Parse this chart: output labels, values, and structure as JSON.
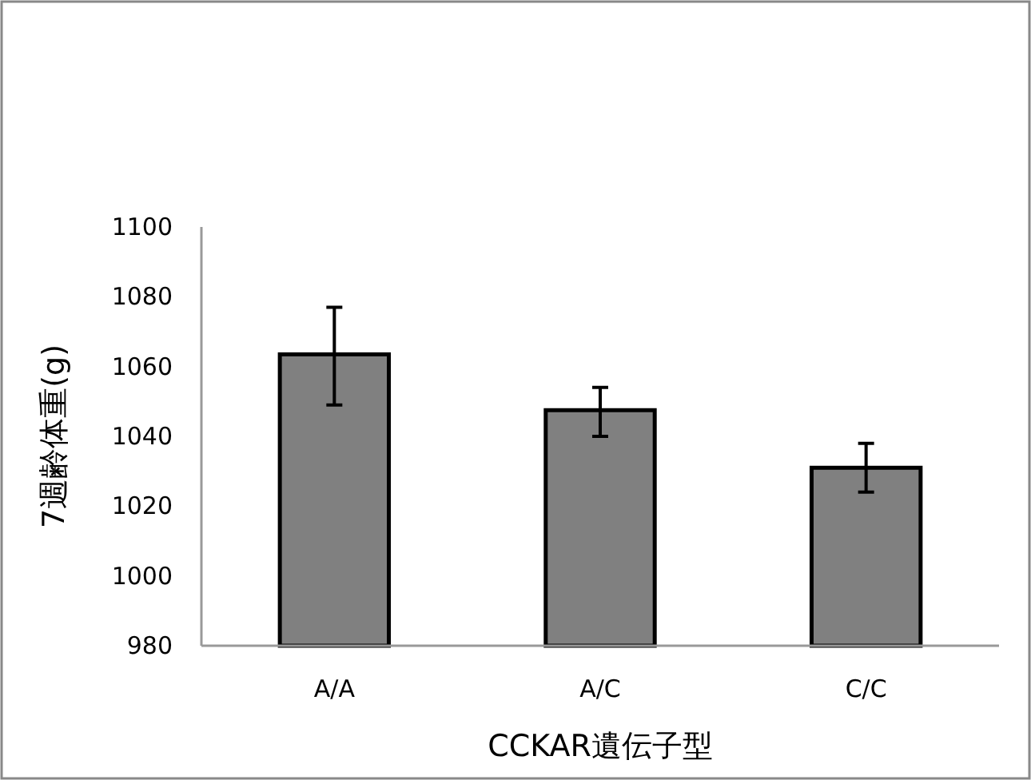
{
  "chart_data": {
    "type": "bar",
    "xlabel": "CCKAR遺伝子型",
    "ylabel": "7週齢体重(g)",
    "categories": [
      "A/A",
      "A/C",
      "C/C"
    ],
    "values": [
      1063.5,
      1047.5,
      1031
    ],
    "errors": [
      [
        1049,
        1077
      ],
      [
        1040,
        1054
      ],
      [
        1024,
        1038
      ]
    ],
    "color": "#808080",
    "ylim": [
      980,
      1100
    ],
    "yticks": [
      980,
      1000,
      1020,
      1040,
      1060,
      1080,
      1100
    ],
    "grid": false
  }
}
